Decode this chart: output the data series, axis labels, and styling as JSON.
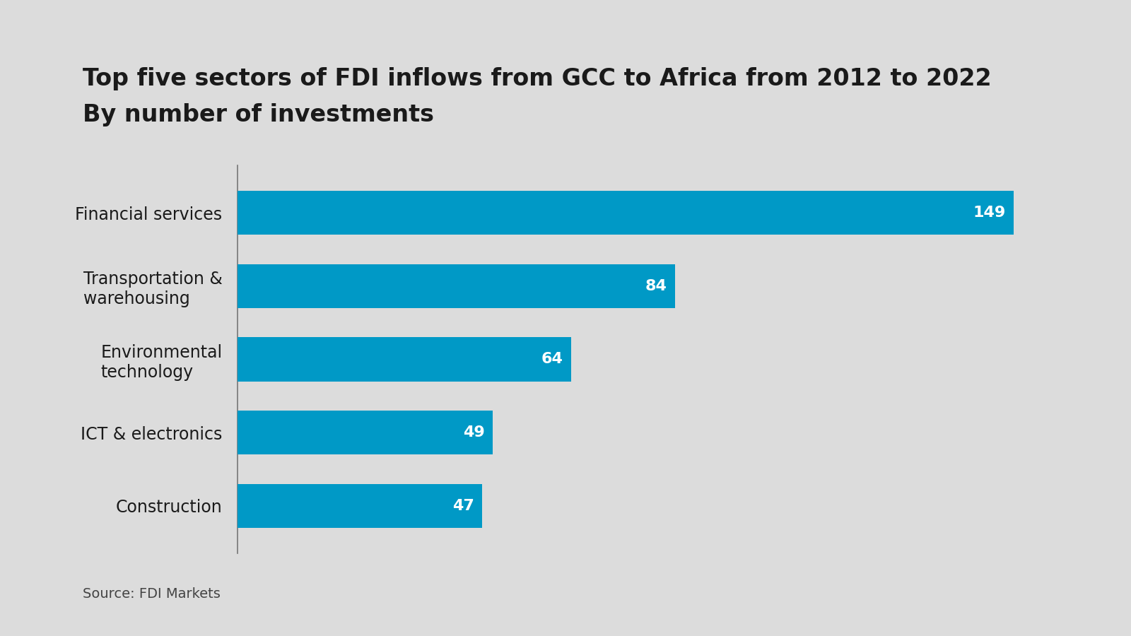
{
  "title_line1": "Top five sectors of FDI inflows from GCC to Africa from 2012 to 2022",
  "title_line2": "By number of investments",
  "categories": [
    "Construction",
    "ICT & electronics",
    "Environmental\ntechnology",
    "Transportation &\nwarehousing",
    "Financial services"
  ],
  "values": [
    47,
    49,
    64,
    84,
    149
  ],
  "bar_color": "#0099C6",
  "background_color": "#DCDCDC",
  "label_color": "#FFFFFF",
  "title_color": "#1A1A1A",
  "source_text": "Source: FDI Markets",
  "source_color": "#444444",
  "value_fontsize": 16,
  "label_fontsize": 17,
  "title_fontsize1": 24,
  "title_fontsize2": 24,
  "source_fontsize": 14,
  "xlim": [
    0,
    165
  ]
}
